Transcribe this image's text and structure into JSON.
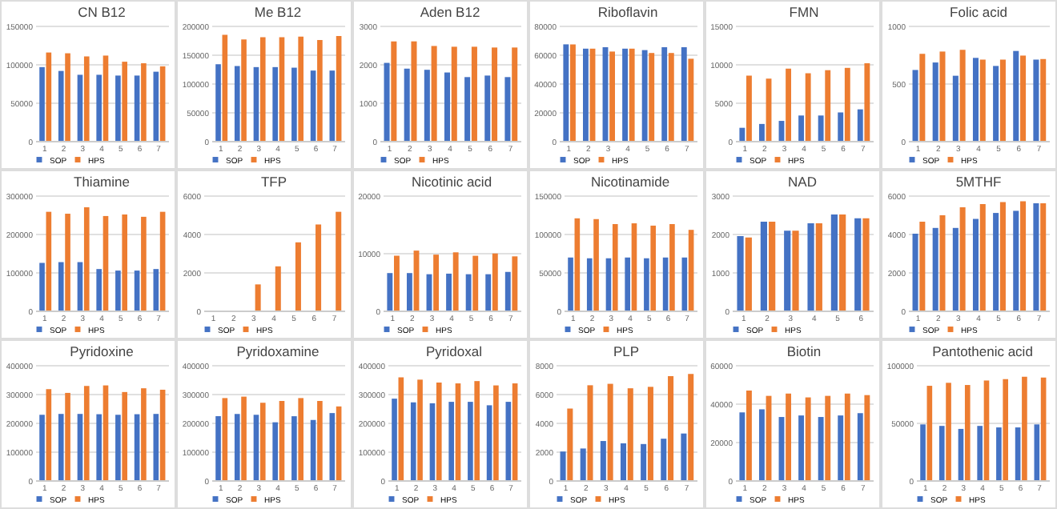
{
  "chart_data": [
    {
      "type": "bar",
      "title": "CN B12",
      "categories": [
        "1",
        "2",
        "3",
        "4",
        "5",
        "6",
        "7"
      ],
      "ylim": [
        0,
        150000
      ],
      "yticks": [
        0,
        50000,
        100000,
        150000
      ],
      "grid": "y",
      "legend": "bottom",
      "series": [
        {
          "name": "SOP",
          "color": "#4472c4",
          "values": [
            96000,
            91000,
            86000,
            86000,
            85000,
            85000,
            90000
          ]
        },
        {
          "name": "HPS",
          "color": "#ed7d31",
          "values": [
            115000,
            114000,
            110000,
            111000,
            103000,
            101000,
            97000
          ]
        }
      ]
    },
    {
      "type": "bar",
      "title": "Me B12",
      "categories": [
        "1",
        "2",
        "3",
        "4",
        "5",
        "6",
        "7"
      ],
      "ylim": [
        0,
        200000
      ],
      "yticks": [
        0,
        50000,
        100000,
        150000,
        200000
      ],
      "grid": "y",
      "legend": "bottom",
      "series": [
        {
          "name": "SOP",
          "color": "#4472c4",
          "values": [
            133000,
            130000,
            128000,
            128000,
            127000,
            122000,
            122000
          ]
        },
        {
          "name": "HPS",
          "color": "#ed7d31",
          "values": [
            184000,
            176000,
            180000,
            180000,
            181000,
            175000,
            182000
          ]
        }
      ]
    },
    {
      "type": "bar",
      "title": "Aden B12",
      "categories": [
        "1",
        "2",
        "3",
        "4",
        "5",
        "6",
        "7"
      ],
      "ylim": [
        0,
        3000
      ],
      "yticks": [
        0,
        1000,
        2000,
        3000
      ],
      "grid": "y",
      "legend": "bottom",
      "series": [
        {
          "name": "SOP",
          "color": "#4472c4",
          "values": [
            2030,
            1880,
            1850,
            1780,
            1660,
            1700,
            1660
          ]
        },
        {
          "name": "HPS",
          "color": "#ed7d31",
          "values": [
            2590,
            2590,
            2470,
            2450,
            2450,
            2430,
            2430
          ]
        }
      ]
    },
    {
      "type": "bar",
      "title": "Riboflavin",
      "categories": [
        "1",
        "2",
        "3",
        "4",
        "5",
        "6",
        "7"
      ],
      "ylim": [
        0,
        80000
      ],
      "yticks": [
        0,
        20000,
        40000,
        60000,
        80000
      ],
      "grid": "y",
      "legend": "bottom",
      "series": [
        {
          "name": "SOP",
          "color": "#4472c4",
          "values": [
            67000,
            64000,
            65000,
            64000,
            63000,
            65000,
            65000
          ]
        },
        {
          "name": "HPS",
          "color": "#ed7d31",
          "values": [
            67000,
            64000,
            62000,
            64000,
            61000,
            61000,
            57000
          ]
        }
      ]
    },
    {
      "type": "bar",
      "title": "FMN",
      "categories": [
        "1",
        "2",
        "3",
        "4",
        "5",
        "6",
        "7"
      ],
      "ylim": [
        0,
        15000
      ],
      "yticks": [
        0,
        5000,
        10000,
        15000
      ],
      "grid": "y",
      "legend": "bottom",
      "series": [
        {
          "name": "SOP",
          "color": "#4472c4",
          "values": [
            1700,
            2200,
            2600,
            3300,
            3300,
            3700,
            4100
          ]
        },
        {
          "name": "HPS",
          "color": "#ed7d31",
          "values": [
            8500,
            8100,
            9400,
            8800,
            9200,
            9500,
            10100
          ]
        }
      ]
    },
    {
      "type": "bar",
      "title": "Folic acid",
      "categories": [
        "1",
        "2",
        "3",
        "4",
        "5",
        "6",
        "7"
      ],
      "ylim": [
        0,
        1000
      ],
      "yticks": [
        0,
        500,
        1000
      ],
      "grid": "y",
      "legend": "bottom",
      "series": [
        {
          "name": "SOP",
          "color": "#4472c4",
          "values": [
            615,
            680,
            565,
            720,
            650,
            780,
            705
          ]
        },
        {
          "name": "HPS",
          "color": "#ed7d31",
          "values": [
            755,
            775,
            790,
            705,
            705,
            740,
            710
          ]
        }
      ]
    },
    {
      "type": "bar",
      "title": "Thiamine",
      "categories": [
        "1",
        "2",
        "3",
        "4",
        "5",
        "6",
        "7"
      ],
      "ylim": [
        0,
        300000
      ],
      "yticks": [
        0,
        100000,
        200000,
        300000
      ],
      "grid": "y",
      "legend": "bottom",
      "series": [
        {
          "name": "SOP",
          "color": "#4472c4",
          "values": [
            124000,
            126000,
            126000,
            108000,
            104000,
            104000,
            108000
          ]
        },
        {
          "name": "HPS",
          "color": "#ed7d31",
          "values": [
            257000,
            252000,
            269000,
            246000,
            250000,
            244000,
            257000
          ]
        }
      ]
    },
    {
      "type": "bar",
      "title": "TFP",
      "categories": [
        "1",
        "2",
        "3",
        "4",
        "5",
        "6",
        "7"
      ],
      "ylim": [
        0,
        6000
      ],
      "yticks": [
        0,
        2000,
        4000,
        6000
      ],
      "grid": "y",
      "legend": "bottom",
      "series": [
        {
          "name": "SOP",
          "color": "#4472c4",
          "values": [
            0,
            0,
            0,
            0,
            0,
            0,
            0
          ]
        },
        {
          "name": "HPS",
          "color": "#ed7d31",
          "values": [
            0,
            0,
            1360,
            2300,
            3550,
            4480,
            5140
          ]
        }
      ]
    },
    {
      "type": "bar",
      "title": "Nicotinic acid",
      "categories": [
        "1",
        "2",
        "3",
        "4",
        "5",
        "6",
        "7"
      ],
      "ylim": [
        0,
        20000
      ],
      "yticks": [
        0,
        10000,
        20000
      ],
      "grid": "y",
      "legend": "bottom",
      "series": [
        {
          "name": "SOP",
          "color": "#4472c4",
          "values": [
            6500,
            6500,
            6300,
            6400,
            6300,
            6300,
            6700
          ]
        },
        {
          "name": "HPS",
          "color": "#ed7d31",
          "values": [
            9500,
            10400,
            9700,
            10100,
            9500,
            9900,
            9400
          ]
        }
      ]
    },
    {
      "type": "bar",
      "title": "Nicotinamide",
      "categories": [
        "1",
        "2",
        "3",
        "4",
        "5",
        "6",
        "7"
      ],
      "ylim": [
        0,
        150000
      ],
      "yticks": [
        0,
        50000,
        100000,
        150000
      ],
      "grid": "y",
      "legend": "bottom",
      "series": [
        {
          "name": "SOP",
          "color": "#4472c4",
          "values": [
            69000,
            68000,
            68000,
            69000,
            68000,
            69000,
            69000
          ]
        },
        {
          "name": "HPS",
          "color": "#ed7d31",
          "values": [
            120000,
            119000,
            112500,
            113500,
            110500,
            112500,
            105000
          ]
        }
      ]
    },
    {
      "type": "bar",
      "title": "NAD",
      "categories": [
        "1",
        "2",
        "3",
        "4",
        "5",
        "6"
      ],
      "ylim": [
        0,
        3000
      ],
      "yticks": [
        0,
        1000,
        2000,
        3000
      ],
      "grid": "y",
      "legend": "bottom",
      "series": [
        {
          "name": "SOP",
          "color": "#4472c4",
          "values": [
            1940,
            2310,
            2080,
            2270,
            2500,
            2400
          ]
        },
        {
          "name": "HPS",
          "color": "#ed7d31",
          "values": [
            1900,
            2310,
            2080,
            2270,
            2500,
            2400
          ]
        }
      ]
    },
    {
      "type": "bar",
      "title": "5MTHF",
      "categories": [
        "1",
        "2",
        "3",
        "4",
        "5",
        "6",
        "7"
      ],
      "ylim": [
        0,
        6000
      ],
      "yticks": [
        0,
        2000,
        4000,
        6000
      ],
      "grid": "y",
      "legend": "bottom",
      "series": [
        {
          "name": "SOP",
          "color": "#4472c4",
          "values": [
            4000,
            4300,
            4300,
            4770,
            5080,
            5190,
            5580
          ]
        },
        {
          "name": "HPS",
          "color": "#ed7d31",
          "values": [
            4620,
            4960,
            5380,
            5540,
            5650,
            5690,
            5580
          ]
        }
      ]
    },
    {
      "type": "bar",
      "title": "Pyridoxine",
      "categories": [
        "1",
        "2",
        "3",
        "4",
        "5",
        "6",
        "7"
      ],
      "ylim": [
        0,
        400000
      ],
      "yticks": [
        0,
        100000,
        200000,
        300000,
        400000
      ],
      "grid": "y",
      "legend": "bottom",
      "series": [
        {
          "name": "SOP",
          "color": "#4472c4",
          "values": [
            227000,
            230000,
            230000,
            229000,
            227000,
            229000,
            230000
          ]
        },
        {
          "name": "HPS",
          "color": "#ed7d31",
          "values": [
            316000,
            303000,
            327000,
            329000,
            306000,
            319000,
            314000
          ]
        }
      ]
    },
    {
      "type": "bar",
      "title": "Pyridoxamine",
      "categories": [
        "1",
        "2",
        "3",
        "4",
        "5",
        "6",
        "7"
      ],
      "ylim": [
        0,
        400000
      ],
      "yticks": [
        0,
        100000,
        200000,
        300000,
        400000
      ],
      "grid": "y",
      "legend": "bottom",
      "series": [
        {
          "name": "SOP",
          "color": "#4472c4",
          "values": [
            222000,
            230000,
            227000,
            201000,
            222000,
            209000,
            233000
          ]
        },
        {
          "name": "HPS",
          "color": "#ed7d31",
          "values": [
            285000,
            290000,
            269000,
            275000,
            285000,
            275000,
            256000
          ]
        }
      ]
    },
    {
      "type": "bar",
      "title": "Pyridoxal",
      "categories": [
        "1",
        "2",
        "3",
        "4",
        "5",
        "6",
        "7"
      ],
      "ylim": [
        0,
        400000
      ],
      "yticks": [
        0,
        100000,
        200000,
        300000,
        400000
      ],
      "grid": "y",
      "legend": "bottom",
      "series": [
        {
          "name": "SOP",
          "color": "#4472c4",
          "values": [
            283000,
            270000,
            267000,
            272000,
            272000,
            260000,
            272000
          ]
        },
        {
          "name": "HPS",
          "color": "#ed7d31",
          "values": [
            357000,
            349000,
            339000,
            336000,
            344000,
            329000,
            336000
          ]
        }
      ]
    },
    {
      "type": "bar",
      "title": "PLP",
      "categories": [
        "1",
        "2",
        "3",
        "4",
        "5",
        "6",
        "7"
      ],
      "ylim": [
        0,
        8000
      ],
      "yticks": [
        0,
        2000,
        4000,
        6000,
        8000
      ],
      "grid": "y",
      "legend": "bottom",
      "series": [
        {
          "name": "SOP",
          "color": "#4472c4",
          "values": [
            1990,
            2200,
            2720,
            2560,
            2510,
            2880,
            3240
          ]
        },
        {
          "name": "HPS",
          "color": "#ed7d31",
          "values": [
            4970,
            6590,
            6690,
            6380,
            6480,
            7220,
            7370
          ]
        }
      ]
    },
    {
      "type": "bar",
      "title": "Biotin",
      "categories": [
        "1",
        "2",
        "3",
        "4",
        "5",
        "6",
        "7"
      ],
      "ylim": [
        0,
        60000
      ],
      "yticks": [
        0,
        20000,
        40000,
        60000
      ],
      "grid": "y",
      "legend": "bottom",
      "series": [
        {
          "name": "SOP",
          "color": "#4472c4",
          "values": [
            35300,
            36900,
            32900,
            33700,
            32900,
            33700,
            34900
          ]
        },
        {
          "name": "HPS",
          "color": "#ed7d31",
          "values": [
            46700,
            43900,
            45100,
            43100,
            43900,
            45100,
            44300
          ]
        }
      ]
    },
    {
      "type": "bar",
      "title": "Pantothenic acid",
      "categories": [
        "1",
        "2",
        "3",
        "4",
        "5",
        "6",
        "7"
      ],
      "ylim": [
        0,
        100000
      ],
      "yticks": [
        0,
        50000,
        100000
      ],
      "grid": "y",
      "legend": "bottom",
      "series": [
        {
          "name": "SOP",
          "color": "#4472c4",
          "values": [
            48400,
            47100,
            44500,
            47100,
            45800,
            45800,
            48400
          ]
        },
        {
          "name": "HPS",
          "color": "#ed7d31",
          "values": [
            81900,
            84500,
            82600,
            86500,
            87700,
            89700,
            89000
          ]
        }
      ]
    }
  ]
}
